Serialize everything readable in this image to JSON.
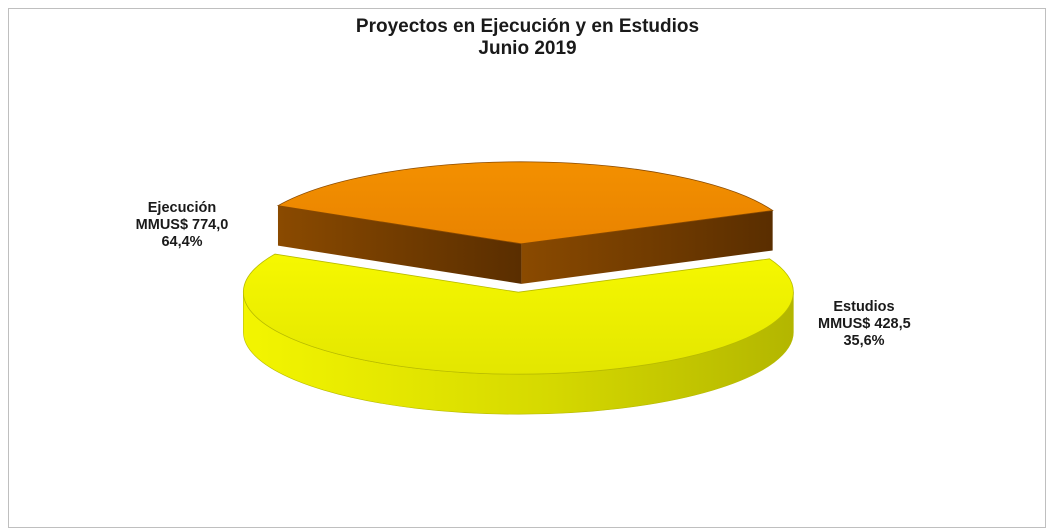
{
  "chart_data": {
    "type": "pie",
    "title": "Proyectos en Ejecución y en Estudios",
    "subtitle": "Junio 2019",
    "unit": "MMUS$",
    "slices": [
      {
        "name": "Ejecución",
        "value": 774.0,
        "value_label": "MMUS$ 774,0",
        "percent": 64.4,
        "percent_label": "64,4%",
        "color": "#e9ec00",
        "dark": "#8a8f00"
      },
      {
        "name": "Estudios",
        "value": 428.5,
        "value_label": "MMUS$ 428,5",
        "percent": 35.6,
        "percent_label": "35,6%",
        "color": "#f08a00",
        "dark": "#6e3a00"
      }
    ],
    "three_d": true,
    "exploded": true,
    "legend": "none"
  }
}
